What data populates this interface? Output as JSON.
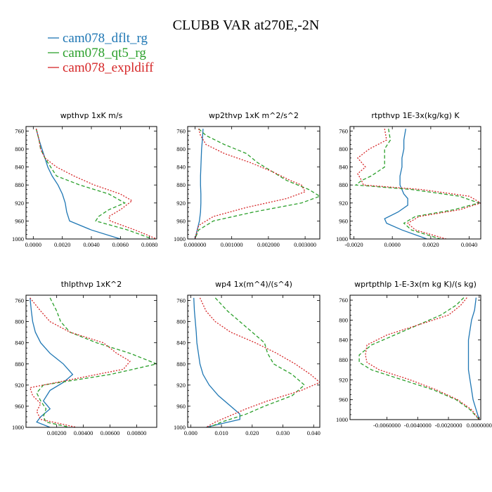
{
  "title": "CLUBB VAR at270E,-2N",
  "legend": [
    {
      "label": "cam078_dflt_rg",
      "color": "#1f77b4",
      "dash": "solid"
    },
    {
      "label": "cam078_qt5_rg",
      "color": "#2ca02c",
      "dash": "dashed"
    },
    {
      "label": "cam078_expldiff",
      "color": "#d62728",
      "dash": "dotted"
    }
  ],
  "chart_data": [
    {
      "type": "line",
      "title": "wpthvp   1xK m/s",
      "xlim": [
        -0.0005,
        0.0085
      ],
      "ylim": [
        1000,
        750
      ],
      "xticks": [
        "0.0000",
        "0.0020",
        "0.0040",
        "0.0060",
        "0.0080"
      ],
      "xtick_values": [
        0,
        0.002,
        0.004,
        0.006,
        0.008
      ],
      "yticks": [
        "760",
        "800",
        "840",
        "880",
        "920",
        "960",
        "1000"
      ],
      "ytick_values": [
        760,
        800,
        840,
        880,
        920,
        960,
        1000
      ],
      "series": [
        {
          "name": "cam078_dflt_rg",
          "y": [
            755,
            780,
            800,
            820,
            840,
            860,
            880,
            900,
            920,
            940,
            960,
            980,
            1000
          ],
          "x": [
            0.0002,
            0.0004,
            0.0006,
            0.0008,
            0.001,
            0.0013,
            0.0017,
            0.002,
            0.0022,
            0.0023,
            0.0025,
            0.004,
            0.006
          ]
        },
        {
          "name": "cam078_qt5_rg",
          "y": [
            755,
            780,
            800,
            820,
            840,
            860,
            880,
            900,
            920,
            935,
            950,
            960,
            980,
            1000
          ],
          "x": [
            0.0002,
            0.0004,
            0.0005,
            0.0008,
            0.0012,
            0.0016,
            0.0032,
            0.0052,
            0.0063,
            0.0052,
            0.0045,
            0.0043,
            0.0065,
            0.0082
          ]
        },
        {
          "name": "cam078_expldiff",
          "y": [
            755,
            780,
            800,
            820,
            840,
            860,
            880,
            900,
            915,
            935,
            950,
            960,
            980,
            1000
          ],
          "x": [
            0.0002,
            0.0004,
            0.0005,
            0.0008,
            0.0016,
            0.0028,
            0.0042,
            0.006,
            0.0068,
            0.006,
            0.0052,
            0.0053,
            0.007,
            0.0085
          ]
        }
      ]
    },
    {
      "type": "line",
      "title": "wp2thvp   1xK m^2/s^2",
      "xlim": [
        -0.0002,
        0.0034
      ],
      "ylim": [
        1000,
        750
      ],
      "xticks": [
        "0.000000",
        "0.001000",
        "0.002000",
        "0.003000"
      ],
      "xtick_values": [
        0,
        0.001,
        0.002,
        0.003
      ],
      "yticks": [
        "760",
        "800",
        "840",
        "880",
        "920",
        "960",
        "1000"
      ],
      "ytick_values": [
        760,
        800,
        840,
        880,
        920,
        960,
        1000
      ],
      "series": [
        {
          "name": "cam078_dflt_rg",
          "y": [
            755,
            780,
            800,
            820,
            840,
            860,
            880,
            900,
            920,
            940,
            960,
            980,
            1000
          ],
          "x": [
            0.00022,
            0.0002,
            0.00018,
            0.00017,
            0.00016,
            0.00015,
            0.00015,
            0.00016,
            0.00016,
            0.00015,
            0.00012,
            6e-05,
            0.0
          ]
        },
        {
          "name": "cam078_qt5_rg",
          "y": [
            755,
            770,
            790,
            810,
            830,
            850,
            870,
            890,
            905,
            920,
            940,
            960,
            980,
            1000
          ],
          "x": [
            0.0001,
            0.0003,
            0.0008,
            0.0014,
            0.0017,
            0.0021,
            0.0025,
            0.0031,
            0.0034,
            0.0029,
            0.0016,
            0.0005,
            0.0001,
            0.0
          ]
        },
        {
          "name": "cam078_expldiff",
          "y": [
            755,
            770,
            790,
            810,
            830,
            850,
            870,
            880,
            895,
            910,
            930,
            950,
            970,
            1000
          ],
          "x": [
            0.0001,
            0.00015,
            0.0003,
            0.0008,
            0.0015,
            0.0021,
            0.0026,
            0.0029,
            0.003,
            0.0025,
            0.0014,
            0.0005,
            0.0001,
            0.0
          ]
        }
      ]
    },
    {
      "type": "line",
      "title": "rtpthvp   1E-3x(kg/kg) K",
      "xlim": [
        -0.0022,
        0.0046
      ],
      "ylim": [
        1000,
        750
      ],
      "xticks": [
        "-0.0020",
        "0.0000",
        "0.0020",
        "0.0040"
      ],
      "xtick_values": [
        -0.002,
        0,
        0.002,
        0.004
      ],
      "yticks": [
        "760",
        "800",
        "840",
        "880",
        "920",
        "960",
        "1000"
      ],
      "ytick_values": [
        760,
        800,
        840,
        880,
        920,
        960,
        1000
      ],
      "series": [
        {
          "name": "cam078_dflt_rg",
          "y": [
            755,
            780,
            800,
            820,
            840,
            860,
            880,
            900,
            910,
            925,
            940,
            955,
            965,
            980,
            1000
          ],
          "x": [
            0.0007,
            0.0006,
            0.0006,
            0.0005,
            0.0005,
            0.0004,
            0.0004,
            0.0006,
            0.0008,
            0.0008,
            0.0003,
            -0.0004,
            -0.0003,
            0.0005,
            0.0018
          ]
        },
        {
          "name": "cam078_qt5_rg",
          "y": [
            755,
            780,
            800,
            820,
            840,
            860,
            870,
            880,
            890,
            905,
            920,
            935,
            950,
            965,
            980,
            1000
          ],
          "x": [
            -0.0002,
            -0.0001,
            -0.0004,
            -0.0004,
            -0.0004,
            -0.0011,
            -0.0016,
            -0.0019,
            0.001,
            0.0035,
            0.0045,
            0.0032,
            0.0012,
            0.0006,
            0.001,
            0.0025
          ]
        },
        {
          "name": "cam078_expldiff",
          "y": [
            755,
            780,
            800,
            820,
            840,
            855,
            870,
            880,
            890,
            905,
            920,
            935,
            950,
            965,
            980,
            1000
          ],
          "x": [
            -0.0004,
            -0.0003,
            -0.0012,
            -0.0018,
            -0.0014,
            -0.0018,
            -0.0016,
            -0.0015,
            0.0015,
            0.004,
            0.0046,
            0.0035,
            0.0014,
            0.0008,
            0.0012,
            0.0028
          ]
        }
      ]
    },
    {
      "type": "line",
      "title": "thlpthvp   1xK^2",
      "xlim": [
        -0.0003,
        0.0095
      ],
      "ylim": [
        1000,
        750
      ],
      "xticks": [
        "0.00200",
        "0.00400",
        "0.00600",
        "0.00800"
      ],
      "xtick_values": [
        0.002,
        0.004,
        0.006,
        0.008
      ],
      "yticks": [
        "760",
        "800",
        "840",
        "880",
        "920",
        "960",
        "1000"
      ],
      "ytick_values": [
        760,
        800,
        840,
        880,
        920,
        960,
        1000
      ],
      "series": [
        {
          "name": "cam078_dflt_rg",
          "y": [
            755,
            780,
            800,
            820,
            840,
            860,
            880,
            900,
            915,
            930,
            950,
            965,
            980,
            990,
            1000
          ],
          "x": [
            0.0,
            0.0001,
            0.0002,
            0.0004,
            0.0008,
            0.0015,
            0.0025,
            0.0032,
            0.0025,
            0.0015,
            0.001,
            0.0015,
            0.0008,
            0.0005,
            0.0015
          ]
        },
        {
          "name": "cam078_qt5_rg",
          "y": [
            755,
            780,
            800,
            820,
            840,
            860,
            880,
            900,
            920,
            935,
            950,
            965,
            980,
            990,
            1000
          ],
          "x": [
            0.0015,
            0.002,
            0.0023,
            0.003,
            0.005,
            0.0075,
            0.0095,
            0.006,
            0.001,
            0.0005,
            0.0008,
            0.0012,
            0.001,
            0.0012,
            0.003
          ]
        },
        {
          "name": "cam078_expldiff",
          "y": [
            755,
            780,
            800,
            820,
            840,
            860,
            875,
            890,
            910,
            925,
            940,
            955,
            970,
            985,
            1000
          ],
          "x": [
            0.0,
            0.0008,
            0.0015,
            0.003,
            0.0055,
            0.0065,
            0.0075,
            0.007,
            0.003,
            0.0,
            0.0002,
            0.0008,
            0.0005,
            0.0008,
            0.0035
          ]
        }
      ]
    },
    {
      "type": "line",
      "title": "wp4   1x(m^4)/(s^4)",
      "xlim": [
        -0.001,
        0.042
      ],
      "ylim": [
        1000,
        750
      ],
      "xticks": [
        "0.000",
        "0.010",
        "0.020",
        "0.030",
        "0.040"
      ],
      "xtick_values": [
        0,
        0.01,
        0.02,
        0.03,
        0.04
      ],
      "yticks": [
        "760",
        "800",
        "840",
        "880",
        "920",
        "960",
        "1000"
      ],
      "ytick_values": [
        760,
        800,
        840,
        880,
        920,
        960,
        1000
      ],
      "series": [
        {
          "name": "cam078_dflt_rg",
          "y": [
            755,
            780,
            800,
            820,
            840,
            860,
            880,
            900,
            920,
            940,
            960,
            975,
            985,
            993,
            1000
          ],
          "x": [
            0.001,
            0.0012,
            0.0015,
            0.0018,
            0.002,
            0.0025,
            0.003,
            0.004,
            0.006,
            0.009,
            0.013,
            0.016,
            0.016,
            0.01,
            0.005
          ]
        },
        {
          "name": "cam078_qt5_rg",
          "y": [
            755,
            780,
            800,
            820,
            840,
            860,
            880,
            900,
            920,
            940,
            960,
            975,
            990,
            1000
          ],
          "x": [
            0.008,
            0.012,
            0.016,
            0.02,
            0.024,
            0.025,
            0.027,
            0.033,
            0.037,
            0.033,
            0.024,
            0.018,
            0.01,
            0.006
          ]
        },
        {
          "name": "cam078_expldiff",
          "y": [
            755,
            780,
            800,
            820,
            840,
            860,
            880,
            900,
            915,
            930,
            950,
            965,
            980,
            990,
            1000
          ],
          "x": [
            0.003,
            0.005,
            0.008,
            0.013,
            0.021,
            0.028,
            0.034,
            0.039,
            0.042,
            0.036,
            0.025,
            0.018,
            0.012,
            0.008,
            0.005
          ]
        }
      ]
    },
    {
      "type": "line",
      "title": "wprtpthlp   1-E-3x(m kg K)/(s kg)",
      "xlim": [
        -0.0084,
        0.0001
      ],
      "ylim": [
        1000,
        750
      ],
      "xticks": [
        "-0.0060000",
        "-0.0040000",
        "-0.0020000",
        "0.0000000"
      ],
      "xtick_values": [
        -0.006,
        -0.004,
        -0.002,
        0
      ],
      "yticks": [
        "760",
        "800",
        "840",
        "880",
        "920",
        "960",
        "1000"
      ],
      "ytick_values": [
        760,
        800,
        840,
        880,
        920,
        960,
        1000
      ],
      "series": [
        {
          "name": "cam078_dflt_rg",
          "y": [
            755,
            780,
            800,
            820,
            840,
            860,
            880,
            900,
            920,
            940,
            960,
            980,
            1000
          ],
          "x": [
            -0.0002,
            -0.0003,
            -0.0005,
            -0.0006,
            -0.0007,
            -0.0007,
            -0.0007,
            -0.0007,
            -0.0006,
            -0.0005,
            -0.0004,
            -0.0002,
            0.0
          ]
        },
        {
          "name": "cam078_qt5_rg",
          "y": [
            755,
            770,
            790,
            810,
            830,
            850,
            870,
            885,
            900,
            920,
            940,
            960,
            980,
            1000
          ],
          "x": [
            -0.001,
            -0.0015,
            -0.0025,
            -0.004,
            -0.0055,
            -0.007,
            -0.0078,
            -0.0078,
            -0.007,
            -0.005,
            -0.003,
            -0.0015,
            -0.0006,
            0.0
          ]
        },
        {
          "name": "cam078_expldiff",
          "y": [
            755,
            770,
            790,
            810,
            830,
            850,
            870,
            885,
            900,
            920,
            940,
            960,
            980,
            1000
          ],
          "x": [
            -0.0008,
            -0.0012,
            -0.002,
            -0.004,
            -0.006,
            -0.0073,
            -0.0074,
            -0.0073,
            -0.0065,
            -0.0045,
            -0.0028,
            -0.0014,
            -0.0005,
            0.0
          ]
        }
      ]
    }
  ]
}
